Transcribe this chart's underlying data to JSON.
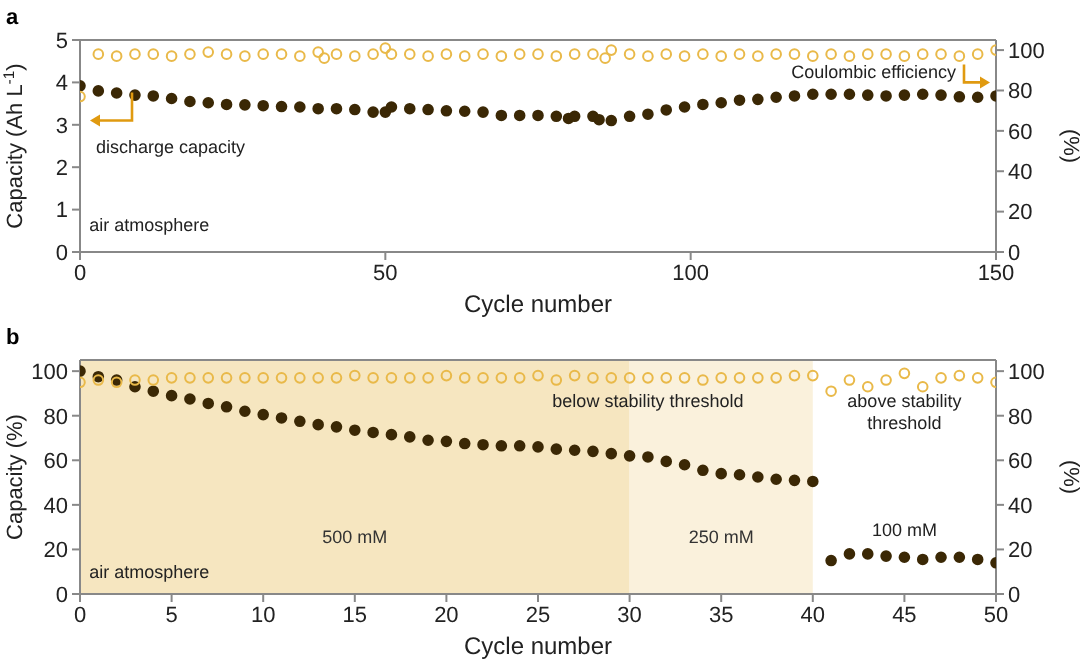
{
  "chart_data": [
    {
      "type": "scatter",
      "title": "a",
      "xlabel": "Cycle number",
      "ylabel": "Capacity (Ah L$^{-1}$)",
      "y2label": "(%)",
      "xlim": [
        0,
        150
      ],
      "xticks": [
        0,
        50,
        100,
        150
      ],
      "ylim": [
        0,
        5
      ],
      "yticks": [
        0,
        1,
        2,
        3,
        4,
        5
      ],
      "y2lim": [
        0,
        105
      ],
      "y2ticks": [
        0,
        20,
        40,
        60,
        80,
        100
      ],
      "marker": "circle",
      "annotations": [
        "air atmosphere"
      ],
      "series": [
        {
          "name": "discharge capacity",
          "color": "#3b2805",
          "x": [
            0,
            3,
            6,
            9,
            12,
            15,
            18,
            21,
            24,
            27,
            30,
            33,
            36,
            39,
            42,
            45,
            48,
            50,
            51,
            54,
            57,
            60,
            63,
            66,
            69,
            72,
            75,
            78,
            80,
            81,
            84,
            85,
            87,
            90,
            93,
            96,
            99,
            102,
            105,
            108,
            111,
            114,
            117,
            120,
            123,
            126,
            129,
            132,
            135,
            138,
            141,
            144,
            147,
            150
          ],
          "values": [
            3.92,
            3.8,
            3.75,
            3.7,
            3.68,
            3.62,
            3.55,
            3.52,
            3.48,
            3.47,
            3.45,
            3.43,
            3.42,
            3.38,
            3.38,
            3.36,
            3.3,
            3.3,
            3.42,
            3.38,
            3.36,
            3.33,
            3.32,
            3.3,
            3.22,
            3.22,
            3.22,
            3.2,
            3.15,
            3.2,
            3.2,
            3.12,
            3.1,
            3.2,
            3.25,
            3.35,
            3.42,
            3.48,
            3.52,
            3.58,
            3.6,
            3.65,
            3.68,
            3.72,
            3.72,
            3.72,
            3.7,
            3.68,
            3.7,
            3.72,
            3.7,
            3.66,
            3.65,
            3.68
          ]
        },
        {
          "name": "Coulombic efficiency",
          "color": "#e9b949",
          "axis": "y2",
          "x": [
            0,
            3,
            6,
            9,
            12,
            15,
            18,
            21,
            24,
            27,
            30,
            33,
            36,
            39,
            40,
            42,
            45,
            48,
            50,
            51,
            54,
            57,
            60,
            63,
            66,
            69,
            72,
            75,
            78,
            81,
            84,
            86,
            87,
            90,
            93,
            96,
            99,
            102,
            105,
            108,
            111,
            114,
            117,
            120,
            123,
            126,
            129,
            132,
            135,
            138,
            141,
            144,
            147,
            150
          ],
          "values": [
            77,
            98,
            97,
            98,
            98,
            97,
            98,
            99,
            98,
            97,
            98,
            98,
            97,
            99,
            96,
            98,
            97,
            98,
            101,
            98,
            98,
            97,
            98,
            97,
            98,
            97,
            98,
            98,
            97,
            98,
            98,
            96,
            100,
            98,
            97,
            98,
            97,
            98,
            97,
            98,
            97,
            98,
            98,
            97,
            98,
            97,
            98,
            98,
            97,
            98,
            98,
            97,
            98,
            100
          ]
        }
      ]
    },
    {
      "type": "scatter",
      "title": "b",
      "xlabel": "Cycle number",
      "ylabel": "Capacity (%)",
      "y2label": "(%)",
      "xlim": [
        0,
        50
      ],
      "xticks": [
        0,
        5,
        10,
        15,
        20,
        25,
        30,
        35,
        40,
        45,
        50
      ],
      "ylim": [
        0,
        105
      ],
      "yticks": [
        0,
        20,
        40,
        60,
        80,
        100
      ],
      "y2lim": [
        0,
        105
      ],
      "y2ticks": [
        0,
        20,
        40,
        60,
        80,
        100
      ],
      "marker": "circle",
      "bands": [
        {
          "axis": "x",
          "from": 0,
          "to": 30,
          "label": "500 mM",
          "color": "#f6e6c0"
        },
        {
          "axis": "x",
          "from": 30,
          "to": 40,
          "label": "250 mM",
          "color": "#faf1dc"
        }
      ],
      "annotations": [
        "air atmosphere",
        "below stability threshold",
        "above stability threshold",
        "100 mM"
      ],
      "series": [
        {
          "color": "#3b2805",
          "x": [
            0,
            1,
            2,
            3,
            4,
            5,
            6,
            7,
            8,
            9,
            10,
            11,
            12,
            13,
            14,
            15,
            16,
            17,
            18,
            19,
            20,
            21,
            22,
            23,
            24,
            25,
            26,
            27,
            28,
            29,
            30,
            31,
            32,
            33,
            34,
            35,
            36,
            37,
            38,
            39,
            40,
            41,
            42,
            43,
            44,
            45,
            46,
            47,
            48,
            49,
            50
          ],
          "values": [
            100,
            97.5,
            96,
            93,
            91,
            89,
            87.5,
            85.5,
            84,
            82,
            80.5,
            79,
            77.5,
            76,
            75,
            73.5,
            72.5,
            71.5,
            70.5,
            69,
            68.5,
            67.5,
            67,
            66.5,
            66.5,
            66,
            65,
            64.5,
            64,
            63,
            62,
            61.5,
            59.5,
            58,
            55.5,
            54,
            53.5,
            52.5,
            51.5,
            51,
            50.5,
            15,
            18,
            18,
            17,
            16.5,
            15.5,
            16.5,
            16.5,
            15.5,
            14
          ]
        },
        {
          "color": "#e9b949",
          "axis": "y2",
          "x": [
            0,
            1,
            2,
            3,
            4,
            5,
            6,
            7,
            8,
            9,
            10,
            11,
            12,
            13,
            14,
            15,
            16,
            17,
            18,
            19,
            20,
            21,
            22,
            23,
            24,
            25,
            26,
            27,
            28,
            29,
            30,
            31,
            32,
            33,
            34,
            35,
            36,
            37,
            38,
            39,
            40,
            41,
            42,
            43,
            44,
            45,
            46,
            47,
            48,
            49,
            50
          ],
          "values": [
            95,
            96,
            95,
            96,
            96,
            97,
            97,
            97,
            97,
            97,
            97,
            97,
            97,
            97,
            97,
            98,
            97,
            97,
            97,
            97,
            98,
            97,
            97,
            97,
            97,
            98,
            96,
            98,
            97,
            97,
            97,
            97,
            97,
            97,
            96,
            97,
            97,
            97,
            97,
            98,
            98,
            91,
            96,
            93,
            96,
            99,
            93,
            97,
            98,
            97,
            95
          ]
        }
      ]
    }
  ]
}
